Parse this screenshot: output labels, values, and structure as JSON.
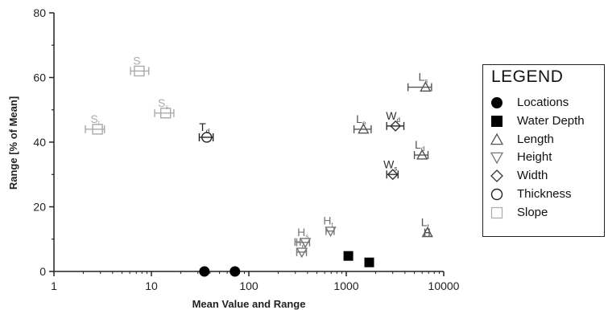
{
  "chart_data": {
    "type": "scatter",
    "title": "",
    "xlabel": "Mean Value and Range",
    "ylabel": "Range [% of Mean]",
    "xscale": "log",
    "xlim": [
      1,
      10000
    ],
    "ylim": [
      0,
      80
    ],
    "x_ticks": [
      1,
      10,
      100,
      1000,
      10000
    ],
    "x_tick_labels": [
      "1",
      "10",
      "100",
      "1000",
      "10000"
    ],
    "y_ticks": [
      0,
      20,
      40,
      60,
      80
    ],
    "y_tick_labels": [
      "0",
      "20",
      "40",
      "60",
      "80"
    ],
    "grid": false,
    "legend": {
      "title": "LEGEND",
      "position": "right",
      "entries": [
        {
          "label": "Locations",
          "marker": "circle-filled",
          "color": "#000000"
        },
        {
          "label": "Water Depth",
          "marker": "square-filled",
          "color": "#000000"
        },
        {
          "label": "Length",
          "marker": "triangle-up-open",
          "color": "#555555"
        },
        {
          "label": "Height",
          "marker": "triangle-down-open",
          "color": "#777777"
        },
        {
          "label": "Width",
          "marker": "diamond-open",
          "color": "#333333"
        },
        {
          "label": "Thickness",
          "marker": "circle-open",
          "color": "#222222"
        },
        {
          "label": "Slope",
          "marker": "square-open",
          "color": "#aaaaaa"
        }
      ]
    },
    "series": [
      {
        "name": "Locations",
        "marker": "circle-filled",
        "color": "#000000",
        "points": [
          {
            "x": 35,
            "y": 0,
            "xmin": 35,
            "xmax": 35,
            "label": ""
          },
          {
            "x": 72,
            "y": 0,
            "xmin": 72,
            "xmax": 72,
            "label": ""
          }
        ]
      },
      {
        "name": "Water Depth",
        "marker": "square-filled",
        "color": "#000000",
        "points": [
          {
            "x": 1050,
            "y": 4.8,
            "xmin": 1050,
            "xmax": 1050,
            "label": ""
          },
          {
            "x": 1720,
            "y": 2.8,
            "xmin": 1720,
            "xmax": 1720,
            "label": ""
          }
        ]
      },
      {
        "name": "Length",
        "marker": "triangle-up-open",
        "color": "#555555",
        "points": [
          {
            "x": 6500,
            "y": 57,
            "xmin": 4300,
            "xmax": 7500,
            "label": "L",
            "sub": "s"
          },
          {
            "x": 1500,
            "y": 44,
            "xmin": 1200,
            "xmax": 1800,
            "label": "L",
            "sub": "e"
          },
          {
            "x": 6000,
            "y": 36,
            "xmin": 5000,
            "xmax": 6900,
            "label": "L",
            "sub": "d"
          },
          {
            "x": 6800,
            "y": 12,
            "xmin": 6400,
            "xmax": 7100,
            "label": "L",
            "sub": "t"
          }
        ]
      },
      {
        "name": "Height",
        "marker": "triangle-down-open",
        "color": "#777777",
        "points": [
          {
            "x": 380,
            "y": 9,
            "xmin": 310,
            "xmax": 420,
            "label": "H",
            "sub": "s"
          },
          {
            "x": 350,
            "y": 6,
            "xmin": 310,
            "xmax": 390,
            "label": "H",
            "sub": "e"
          },
          {
            "x": 690,
            "y": 12.5,
            "xmin": 620,
            "xmax": 750,
            "label": "H",
            "sub": "t"
          }
        ]
      },
      {
        "name": "Width",
        "marker": "diamond-open",
        "color": "#333333",
        "points": [
          {
            "x": 3200,
            "y": 45,
            "xmin": 2600,
            "xmax": 3900,
            "label": "W",
            "sub": "d"
          },
          {
            "x": 3000,
            "y": 30,
            "xmin": 2600,
            "xmax": 3400,
            "label": "W",
            "sub": "s"
          }
        ]
      },
      {
        "name": "Thickness",
        "marker": "circle-open",
        "color": "#222222",
        "points": [
          {
            "x": 37,
            "y": 41.5,
            "xmin": 31,
            "xmax": 43,
            "label": "T",
            "sub": "d"
          }
        ]
      },
      {
        "name": "Slope",
        "marker": "square-open",
        "color": "#aaaaaa",
        "points": [
          {
            "x": 7.5,
            "y": 62,
            "xmin": 6.1,
            "xmax": 9.4,
            "label": "S",
            "sub": ""
          },
          {
            "x": 14,
            "y": 49,
            "xmin": 10.8,
            "xmax": 17,
            "label": "S",
            "sub": "s"
          },
          {
            "x": 2.8,
            "y": 44,
            "xmin": 2.1,
            "xmax": 3.3,
            "label": "S",
            "sub": "t"
          }
        ]
      }
    ]
  }
}
